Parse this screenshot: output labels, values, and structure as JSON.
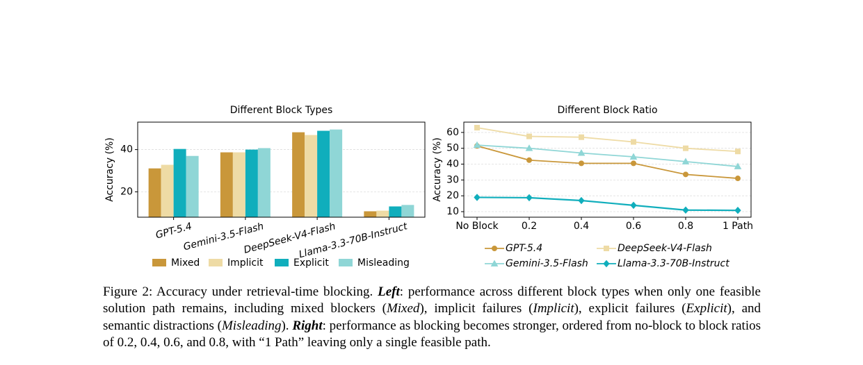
{
  "chart_data": [
    {
      "type": "bar",
      "title": "Different Block Types",
      "y_label": "Accuracy (%)",
      "categories": [
        "GPT-5.4",
        "Gemini-3.5-Flash",
        "DeepSeek-V4-Flash",
        "Llama-3.3-70B-Instruct"
      ],
      "series": [
        {
          "name": "Mixed",
          "color": "#c9973a",
          "values": [
            31.1,
            38.7,
            48.2,
            10.8
          ]
        },
        {
          "name": "Implicit",
          "color": "#eedba5",
          "values": [
            32.8,
            38.7,
            46.9,
            11.1
          ]
        },
        {
          "name": "Explicit",
          "color": "#10aebc",
          "values": [
            40.3,
            40.0,
            48.9,
            13.1
          ]
        },
        {
          "name": "Misleading",
          "color": "#8fd6d6",
          "values": [
            37.0,
            40.7,
            49.5,
            13.8
          ]
        }
      ],
      "ylim": [
        8,
        53
      ],
      "yticks": [
        20,
        40
      ],
      "grid": true,
      "legend": "lower center",
      "legend_columns": 4
    },
    {
      "type": "line",
      "title": "Different Block Ratio",
      "y_label": "Accuracy (%)",
      "categories": [
        "No Block",
        "0.2",
        "0.4",
        "0.6",
        "0.8",
        "1 Path"
      ],
      "series": [
        {
          "name": "GPT-5.4",
          "color": "#c9973a",
          "marker": "circle",
          "values": [
            51.5,
            42.5,
            40.5,
            40.5,
            33.5,
            31
          ]
        },
        {
          "name": "DeepSeek-V4-Flash",
          "color": "#eedba5",
          "marker": "square",
          "values": [
            63,
            57.5,
            57,
            54,
            50,
            48
          ]
        },
        {
          "name": "Gemini-3.5-Flash",
          "color": "#8fd6d6",
          "marker": "triangle",
          "values": [
            52,
            50,
            47,
            44.6,
            41.6,
            38.5
          ]
        },
        {
          "name": "Llama-3.3-70B-Instruct",
          "color": "#10aebc",
          "marker": "diamond",
          "values": [
            19,
            18.8,
            17,
            14,
            11,
            10.8
          ]
        }
      ],
      "ylim": [
        6.5,
        66.5
      ],
      "yticks": [
        10,
        20,
        30,
        40,
        50,
        60
      ],
      "grid": true,
      "legend": "lower center",
      "legend_columns": 2
    }
  ],
  "caption": [
    {
      "text": "Figure 2: Accuracy under retrieval-time blocking. "
    },
    {
      "text": "Left",
      "style": "bold-italic"
    },
    {
      "text": ": performance across different block types when only one feasible solution path remains, including mixed blockers ("
    },
    {
      "text": "Mixed",
      "style": "italic"
    },
    {
      "text": "), implicit failures ("
    },
    {
      "text": "Implicit",
      "style": "italic"
    },
    {
      "text": "), explicit failures ("
    },
    {
      "text": "Explicit",
      "style": "italic"
    },
    {
      "text": "), and semantic distractions ("
    },
    {
      "text": "Misleading",
      "style": "italic"
    },
    {
      "text": "). "
    },
    {
      "text": "Right",
      "style": "bold-italic"
    },
    {
      "text": ": performance as blocking becomes stronger, ordered from no-block to block ratios of 0.2, 0.4, 0.6, and 0.8, with “1 Path” leaving only a single feasible path."
    }
  ]
}
